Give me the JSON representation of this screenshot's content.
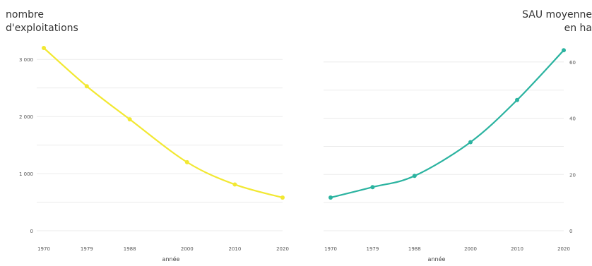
{
  "chart_data": [
    {
      "type": "line",
      "ylabel_line1": "nombre",
      "ylabel_line2": "d'exploitations",
      "xlabel": "année",
      "x": [
        1970,
        1979,
        1988,
        2000,
        2010,
        2020
      ],
      "values": [
        3200,
        2530,
        1950,
        1200,
        810,
        580
      ],
      "ylim": [
        0,
        3200
      ],
      "yticks": [
        0,
        1000,
        2000,
        3000
      ],
      "ytick_labels": [
        "0",
        "1 000",
        "2 000",
        "3 000"
      ],
      "color": "#f2e832",
      "axis_side": "left",
      "grid": true
    },
    {
      "type": "line",
      "ylabel_line1": "SAU moyenne",
      "ylabel_line2": "en ha",
      "xlabel": "année",
      "x": [
        1970,
        1979,
        1988,
        2000,
        2010,
        2020
      ],
      "values": [
        11.8,
        15.5,
        19.5,
        31.5,
        46.5,
        64.2
      ],
      "ylim": [
        0,
        65
      ],
      "yticks": [
        0,
        20,
        40,
        60
      ],
      "ytick_labels": [
        "0",
        "20",
        "40",
        "60"
      ],
      "color": "#2bb3a0",
      "axis_side": "right",
      "grid": true
    }
  ]
}
